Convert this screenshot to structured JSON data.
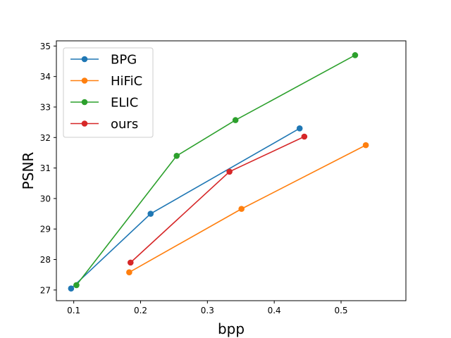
{
  "chart_data": {
    "type": "line",
    "xlabel": "bpp",
    "ylabel": "PSNR",
    "xlim": [
      0.074,
      0.597
    ],
    "ylim": [
      26.65,
      35.17
    ],
    "xticks": [
      0.1,
      0.2,
      0.3,
      0.4,
      0.5
    ],
    "xtick_labels": [
      "0.1",
      "0.2",
      "0.3",
      "0.4",
      "0.5"
    ],
    "yticks": [
      27,
      28,
      29,
      30,
      31,
      32,
      33,
      34,
      35
    ],
    "ytick_labels": [
      "27",
      "28",
      "29",
      "30",
      "31",
      "32",
      "33",
      "34",
      "35"
    ],
    "grid": false,
    "legend_position": "top-left",
    "series": [
      {
        "name": "BPG",
        "color": "#1f77b4",
        "x": [
          0.096,
          0.215,
          0.438
        ],
        "y": [
          27.05,
          29.5,
          32.3
        ]
      },
      {
        "name": "HiFiC",
        "color": "#ff7f0e",
        "x": [
          0.183,
          0.351,
          0.537
        ],
        "y": [
          27.58,
          29.66,
          31.75
        ]
      },
      {
        "name": "ELIC",
        "color": "#2ca02c",
        "x": [
          0.104,
          0.254,
          0.342,
          0.521
        ],
        "y": [
          27.16,
          31.4,
          32.57,
          34.7
        ]
      },
      {
        "name": "ours",
        "color": "#d62728",
        "x": [
          0.185,
          0.333,
          0.445
        ],
        "y": [
          27.9,
          30.88,
          32.03
        ]
      }
    ]
  }
}
